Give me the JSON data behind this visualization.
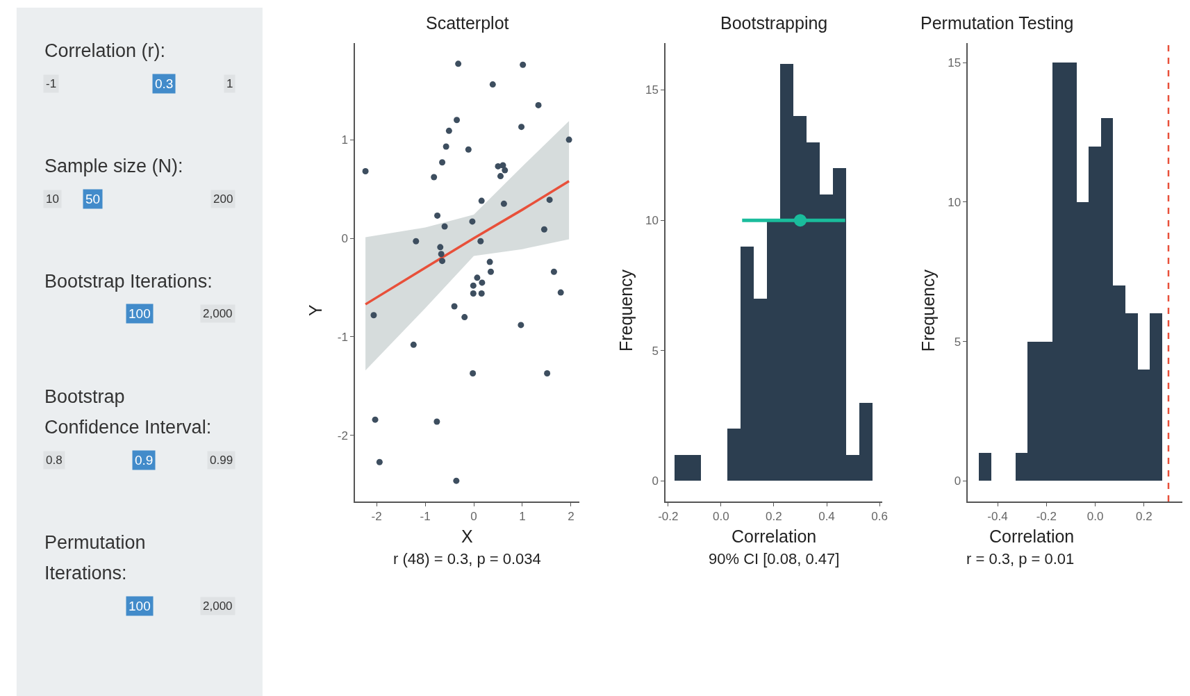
{
  "chart_data": [
    {
      "type": "other",
      "annotations": [
        "Correlation (r):",
        "-1",
        "0.3",
        "1",
        "Sample size (N):",
        "10",
        "50",
        "200",
        "Bootstrap Iterations:",
        null,
        "100",
        "2,000",
        "Bootstrap Confidence Interval:",
        "0.8",
        "0.9",
        "0.99",
        "Permutation Iterations:",
        null,
        "100",
        "2,000"
      ]
    },
    {
      "type": "scatter",
      "title": "Scatterplot",
      "xlabel": "X",
      "ylabel": "Y",
      "annotations": [
        "r (48) = 0.3, p = 0.034"
      ],
      "xlim": [
        -2.44,
        2.17
      ],
      "ylim": [
        -2.67,
        1.98
      ],
      "xticks": [
        -2,
        -1,
        0,
        1,
        2
      ],
      "yticks": [
        -2,
        -1,
        0,
        1
      ],
      "series": [
        {
          "type": "line",
          "color": "#e8503a",
          "x": [
            -2.23,
            -1,
            0,
            1,
            1.96
          ],
          "values": [
            -0.67,
            -0.3,
            0.0,
            0.29,
            0.58
          ],
          "lower": [
            -1.34,
            -0.71,
            -0.18,
            -0.11,
            -0.01
          ],
          "upper": [
            0.01,
            0.11,
            0.24,
            0.73,
            1.19
          ]
        },
        {
          "type": "scatter",
          "marker": "circle",
          "color": "#3d4e5f",
          "x": [
            -2.23,
            -0.32,
            1.01,
            0.39,
            1.33,
            -0.35,
            -0.51,
            0.98,
            1.96,
            -0.57,
            -0.11,
            -0.65,
            -0.82,
            0.5,
            0.6,
            0.64,
            0.55,
            0.16,
            0.62,
            1.56,
            -0.75,
            -0.6,
            -0.03,
            1.45,
            -1.19,
            0.14,
            -0.69,
            -0.67,
            -0.65,
            0.33,
            0.35,
            0.07,
            0.17,
            -0.01,
            -0.01,
            0.16,
            1.65,
            1.79,
            -0.4,
            -2.06,
            -0.19,
            0.97,
            -1.24,
            -0.02,
            1.51,
            -2.03,
            -0.76,
            -1.94,
            -0.36
          ],
          "values": [
            0.68,
            1.77,
            1.76,
            1.56,
            1.35,
            1.2,
            1.09,
            1.13,
            1.0,
            0.93,
            0.9,
            0.77,
            0.62,
            0.73,
            0.74,
            0.69,
            0.63,
            0.38,
            0.35,
            0.39,
            0.23,
            0.12,
            0.17,
            0.09,
            -0.03,
            -0.03,
            -0.09,
            -0.16,
            -0.23,
            -0.24,
            -0.34,
            -0.4,
            -0.45,
            -0.48,
            -0.56,
            -0.56,
            -0.34,
            -0.55,
            -0.69,
            -0.78,
            -0.8,
            -0.88,
            -1.08,
            -1.37,
            -1.37,
            -1.84,
            -1.86,
            -2.27,
            -2.46
          ]
        }
      ]
    },
    {
      "type": "histogram",
      "title": "Bootstrapping",
      "xlabel": "Correlation",
      "ylabel": "Frequency",
      "annotations": [
        "90% CI [0.08, 0.47]"
      ],
      "color": "#2c3e50",
      "bins": [
        -0.175,
        -0.125,
        -0.075,
        -0.025,
        0.025,
        0.075,
        0.125,
        0.175,
        0.225,
        0.275,
        0.325,
        0.375,
        0.425,
        0.475,
        0.525,
        0.575
      ],
      "values": [
        1,
        1,
        0,
        0,
        2,
        9,
        7,
        10,
        16,
        14,
        13,
        11,
        12,
        1,
        3
      ],
      "xlim": [
        -0.209,
        0.61
      ],
      "ylim": [
        -0.79,
        16.8
      ],
      "xticks": [
        -0.2,
        {
          "value": 0,
          "label": "0.0"
        },
        0.2,
        0.4,
        0.6
      ],
      "yticks": [
        0,
        5,
        10,
        15
      ],
      "series": [
        {
          "type": "scatter",
          "color": "#1abc9c",
          "x": [
            0.3
          ],
          "values": [
            10
          ],
          "xerrors": [
            [
              0.08,
              0.47
            ]
          ]
        }
      ]
    },
    {
      "type": "histogram",
      "title": "Permutation Testing",
      "xlabel": "Correlation",
      "ylabel": "Frequency",
      "annotations": [
        "r = 0.3, p = 0.01"
      ],
      "color": "#2c3e50",
      "bins": [
        -0.475,
        -0.425,
        -0.375,
        -0.325,
        -0.275,
        -0.225,
        -0.175,
        -0.125,
        -0.075,
        -0.025,
        0.025,
        0.075,
        0.125,
        0.175,
        0.225,
        0.275
      ],
      "values": [
        1,
        0,
        0,
        1,
        5,
        5,
        15,
        15,
        10,
        12,
        13,
        7,
        6,
        4,
        6
      ],
      "xlim": [
        -0.521,
        0.357
      ],
      "ylim": [
        -0.74,
        15.7
      ],
      "xticks": [
        -0.4,
        -0.2,
        {
          "value": 0,
          "label": "0.0"
        },
        0.2
      ],
      "yticks": [
        0,
        5,
        10,
        15
      ],
      "ref_lines": [
        {
          "axis": "x",
          "value": 0.3,
          "color": "#e8503a",
          "line_style": "dashed"
        }
      ]
    }
  ]
}
